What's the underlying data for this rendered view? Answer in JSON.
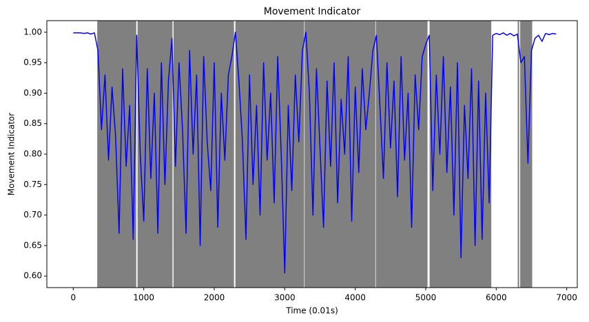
{
  "chart_data": {
    "type": "line",
    "title": "Movement Indicator",
    "x_label": "Time (0.01s)",
    "y_label": "Movement Indicator",
    "color": "#0000ff",
    "shade_color": "#808080",
    "shaded_regions": [
      [
        340,
        893
      ],
      [
        912,
        1408
      ],
      [
        1422,
        2280
      ],
      [
        2300,
        3275
      ],
      [
        3282,
        4285
      ],
      [
        4292,
        5025
      ],
      [
        5055,
        5930
      ],
      [
        6305,
        6325
      ],
      [
        6340,
        6510
      ]
    ],
    "x": [
      0,
      50,
      100,
      150,
      200,
      250,
      300,
      350,
      400,
      450,
      500,
      550,
      600,
      650,
      700,
      750,
      800,
      850,
      900,
      950,
      1000,
      1050,
      1100,
      1150,
      1200,
      1250,
      1300,
      1350,
      1400,
      1450,
      1500,
      1550,
      1600,
      1650,
      1700,
      1750,
      1800,
      1850,
      1900,
      1950,
      2000,
      2050,
      2100,
      2150,
      2200,
      2250,
      2300,
      2350,
      2400,
      2450,
      2500,
      2550,
      2600,
      2650,
      2700,
      2750,
      2800,
      2850,
      2900,
      2950,
      3000,
      3050,
      3100,
      3150,
      3200,
      3250,
      3300,
      3350,
      3400,
      3450,
      3500,
      3550,
      3600,
      3650,
      3700,
      3750,
      3800,
      3850,
      3900,
      3950,
      4000,
      4050,
      4100,
      4150,
      4200,
      4250,
      4300,
      4350,
      4400,
      4450,
      4500,
      4550,
      4600,
      4650,
      4700,
      4750,
      4800,
      4850,
      4900,
      4950,
      5000,
      5050,
      5100,
      5150,
      5200,
      5250,
      5300,
      5350,
      5400,
      5450,
      5500,
      5550,
      5600,
      5650,
      5700,
      5750,
      5800,
      5850,
      5900,
      5950,
      6000,
      6050,
      6100,
      6150,
      6200,
      6250,
      6300,
      6350,
      6400,
      6450,
      6500,
      6550,
      6600,
      6650,
      6700,
      6750,
      6800,
      6850
    ],
    "values": [
      0.999,
      0.999,
      0.999,
      0.998,
      0.999,
      0.997,
      0.999,
      0.97,
      0.84,
      0.93,
      0.79,
      0.91,
      0.83,
      0.67,
      0.94,
      0.78,
      0.88,
      0.66,
      0.995,
      0.8,
      0.69,
      0.94,
      0.76,
      0.9,
      0.67,
      0.95,
      0.75,
      0.92,
      0.99,
      0.78,
      0.95,
      0.84,
      0.67,
      0.97,
      0.8,
      0.93,
      0.65,
      0.96,
      0.82,
      0.74,
      0.95,
      0.68,
      0.9,
      0.79,
      0.93,
      0.96,
      1.0,
      0.92,
      0.82,
      0.66,
      0.93,
      0.75,
      0.88,
      0.7,
      0.95,
      0.79,
      0.9,
      0.72,
      0.96,
      0.8,
      0.605,
      0.88,
      0.74,
      0.93,
      0.82,
      0.97,
      1.0,
      0.9,
      0.7,
      0.94,
      0.81,
      0.68,
      0.92,
      0.78,
      0.95,
      0.72,
      0.89,
      0.8,
      0.96,
      0.69,
      0.91,
      0.77,
      0.94,
      0.84,
      0.9,
      0.97,
      0.995,
      0.88,
      0.76,
      0.95,
      0.81,
      0.92,
      0.73,
      0.96,
      0.79,
      0.9,
      0.68,
      0.93,
      0.84,
      0.96,
      0.98,
      0.995,
      0.74,
      0.93,
      0.8,
      0.96,
      0.77,
      0.91,
      0.7,
      0.95,
      0.63,
      0.88,
      0.76,
      0.94,
      0.65,
      0.92,
      0.66,
      0.9,
      0.72,
      0.995,
      0.998,
      0.996,
      0.999,
      0.995,
      0.998,
      0.994,
      0.997,
      0.95,
      0.96,
      0.785,
      0.97,
      0.99,
      0.995,
      0.985,
      0.998,
      0.996,
      0.998,
      0.997
    ],
    "xlim": [
      -375,
      7150
    ],
    "ylim": [
      0.581,
      1.019
    ],
    "xticks": [
      0,
      1000,
      2000,
      3000,
      4000,
      5000,
      6000,
      7000
    ],
    "yticks": [
      {
        "value": 0.6,
        "label": "0.60"
      },
      {
        "value": 0.65,
        "label": "0.65"
      },
      {
        "value": 0.7,
        "label": "0.70"
      },
      {
        "value": 0.75,
        "label": "0.75"
      },
      {
        "value": 0.8,
        "label": "0.80"
      },
      {
        "value": 0.85,
        "label": "0.85"
      },
      {
        "value": 0.9,
        "label": "0.90"
      },
      {
        "value": 0.95,
        "label": "0.95"
      },
      {
        "value": 1.0,
        "label": "1.00"
      }
    ]
  }
}
